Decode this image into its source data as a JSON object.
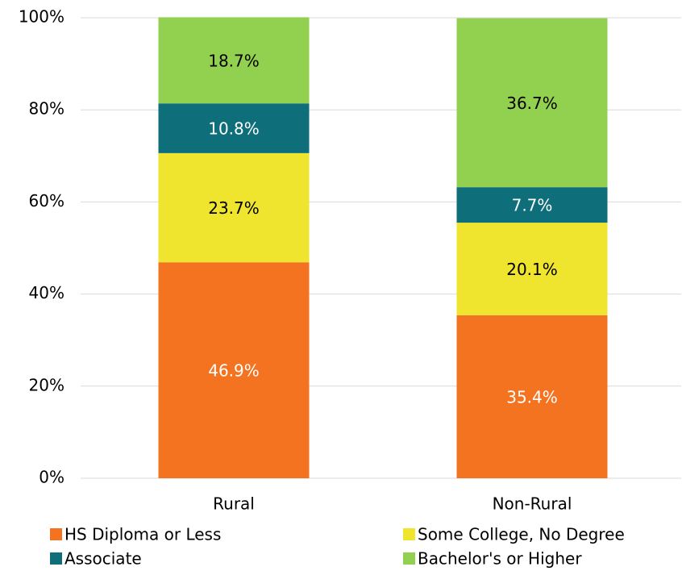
{
  "chart_data": {
    "type": "stacked_bar",
    "categories": [
      "Rural",
      "Non-Rural"
    ],
    "series": [
      {
        "name": "HS Diploma or Less",
        "color": "#F47321",
        "label_color": "#ffffff",
        "values": [
          46.9,
          35.4
        ],
        "value_labels": [
          "46.9%",
          "35.4%"
        ]
      },
      {
        "name": "Some College, No Degree",
        "color": "#EFE52E",
        "label_color": "#000000",
        "values": [
          23.7,
          20.1
        ],
        "value_labels": [
          "23.7%",
          "20.1%"
        ]
      },
      {
        "name": "Associate",
        "color": "#0E6E7A",
        "label_color": "#ffffff",
        "values": [
          10.8,
          7.7
        ],
        "value_labels": [
          "10.8%",
          "7.7%"
        ]
      },
      {
        "name": "Bachelor's or Higher",
        "color": "#92D050",
        "label_color": "#000000",
        "values": [
          18.7,
          36.7
        ],
        "value_labels": [
          "18.7%",
          "36.7%"
        ]
      }
    ],
    "ylim": [
      0,
      100
    ],
    "yticks": [
      {
        "value": 0,
        "label": "0%"
      },
      {
        "value": 20,
        "label": "20%"
      },
      {
        "value": 40,
        "label": "40%"
      },
      {
        "value": 60,
        "label": "60%"
      },
      {
        "value": 80,
        "label": "80%"
      },
      {
        "value": 100,
        "label": "100%"
      }
    ],
    "grid": true,
    "legend": "bottom"
  }
}
